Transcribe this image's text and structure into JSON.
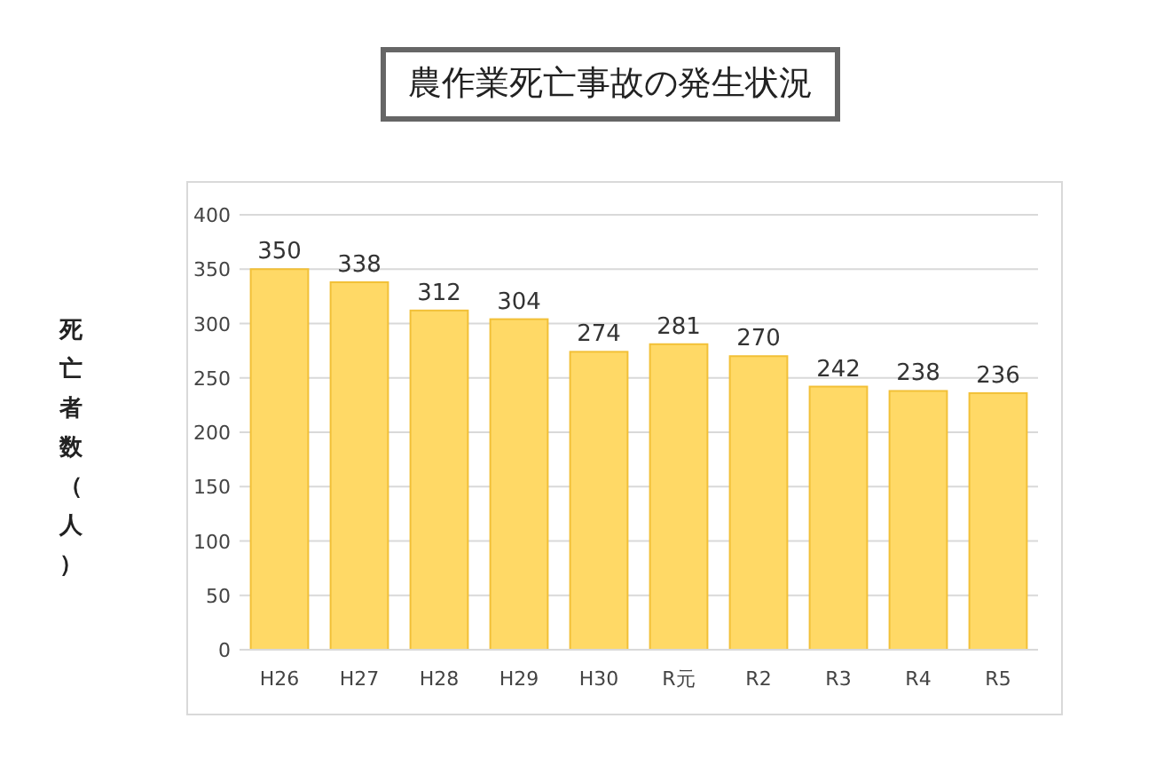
{
  "chart_data": {
    "type": "bar",
    "title": "農作業死亡事故の発生状況",
    "ylabel": "死亡者数（人）",
    "categories": [
      "H26",
      "H27",
      "H28",
      "H29",
      "H30",
      "R元",
      "R2",
      "R3",
      "R4",
      "R5"
    ],
    "values": [
      350,
      338,
      312,
      304,
      274,
      281,
      270,
      242,
      238,
      236
    ],
    "color": "#ffd966",
    "data_labels": true,
    "ylim": [
      0,
      400
    ],
    "yticks": [
      0,
      50,
      100,
      150,
      200,
      250,
      300,
      350,
      400
    ],
    "grid": "y"
  }
}
